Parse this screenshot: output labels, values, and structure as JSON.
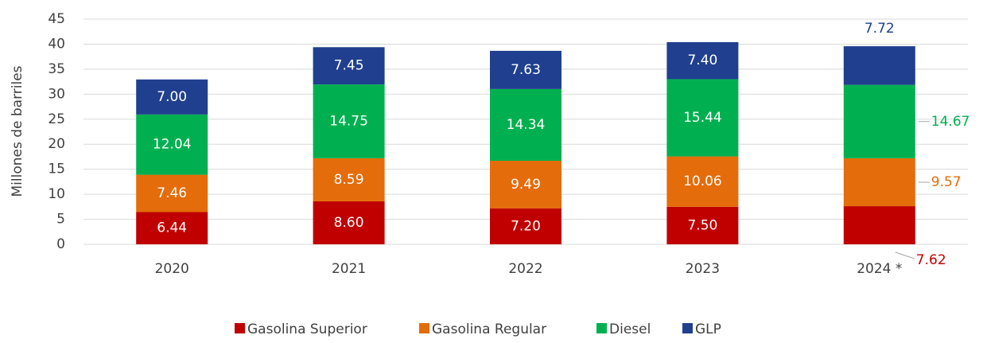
{
  "chart_data": {
    "type": "bar",
    "stacked": true,
    "y_label": "Millones de barriles",
    "categories": [
      "2020",
      "2021",
      "2022",
      "2023",
      "2024 *"
    ],
    "series": [
      {
        "name": "Gasolina Superior",
        "color": "#c00000",
        "values": [
          6.44,
          8.6,
          7.2,
          7.5,
          7.62
        ],
        "value_labels": [
          "6.44",
          "8.60",
          "7.20",
          "7.50",
          "7.62"
        ]
      },
      {
        "name": "Gasolina Regular",
        "color": "#e46c0a",
        "values": [
          7.46,
          8.59,
          9.49,
          10.06,
          9.57
        ],
        "value_labels": [
          "7.46",
          "8.59",
          "9.49",
          "10.06",
          "9.57"
        ]
      },
      {
        "name": "Diesel",
        "color": "#00b050",
        "values": [
          12.04,
          14.75,
          14.34,
          15.44,
          14.67
        ],
        "value_labels": [
          "12.04",
          "14.75",
          "14.34",
          "15.44",
          "14.67"
        ]
      },
      {
        "name": "GLP",
        "color": "#203f8f",
        "values": [
          7,
          7.45,
          7.63,
          7.4,
          7.72
        ],
        "value_labels": [
          "7.00",
          "7.45",
          "7.63",
          "7.40",
          "7.72"
        ]
      }
    ],
    "ylim": [
      0,
      45
    ],
    "yticks": [
      0,
      5,
      10,
      15,
      20,
      25,
      30,
      35,
      40,
      45
    ],
    "grid": true
  }
}
